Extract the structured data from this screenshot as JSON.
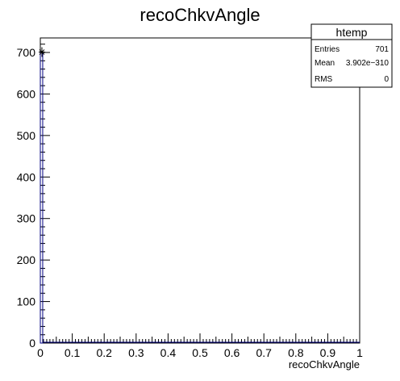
{
  "chart_data": {
    "type": "bar",
    "title": "recoChkvAngle",
    "xlabel": "recoChkvAngle",
    "ylabel": "",
    "xlim": [
      0,
      1
    ],
    "ylim": [
      0,
      735
    ],
    "x_ticks": [
      "0",
      "0.1",
      "0.2",
      "0.3",
      "0.4",
      "0.5",
      "0.6",
      "0.7",
      "0.8",
      "0.9",
      "1"
    ],
    "x_tick_values": [
      0,
      0.1,
      0.2,
      0.3,
      0.4,
      0.5,
      0.6,
      0.7,
      0.8,
      0.9,
      1
    ],
    "y_ticks": [
      "0",
      "100",
      "200",
      "300",
      "400",
      "500",
      "600",
      "700"
    ],
    "y_tick_values": [
      0,
      100,
      200,
      300,
      400,
      500,
      600,
      700
    ],
    "bins": 100,
    "bin_edges": [
      0,
      0.01
    ],
    "values": [
      701
    ],
    "point": {
      "x": 0.005,
      "y": 701
    },
    "color": "#000080",
    "stats": {
      "name": "htemp",
      "rows": [
        {
          "label": "Entries",
          "value": "701"
        },
        {
          "label": "Mean",
          "value": "3.902e−310"
        },
        {
          "label": "RMS",
          "value": "0"
        }
      ]
    }
  }
}
